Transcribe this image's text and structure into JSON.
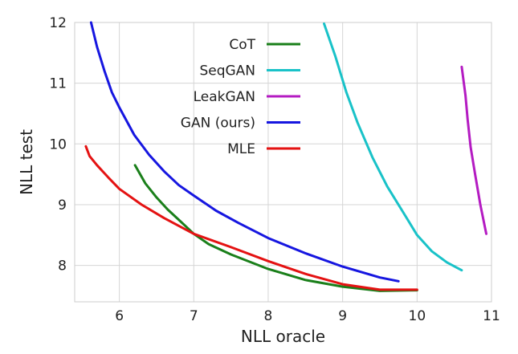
{
  "chart_data": {
    "type": "line",
    "title": "",
    "xlabel": "NLL oracle",
    "ylabel": "NLL test",
    "xlim": [
      5.4,
      11.0
    ],
    "ylim": [
      7.4,
      12.0
    ],
    "xticks": [
      6,
      7,
      8,
      9,
      10,
      11
    ],
    "yticks": [
      8,
      9,
      10,
      11,
      12
    ],
    "grid": true,
    "legend_position": "top-right",
    "series": [
      {
        "name": "CoT",
        "color": "#1a7f1a",
        "x": [
          6.21,
          6.35,
          6.5,
          6.65,
          6.8,
          7.0,
          7.2,
          7.5,
          8.0,
          8.5,
          9.0,
          9.5,
          10.0
        ],
        "y": [
          9.65,
          9.35,
          9.12,
          8.92,
          8.75,
          8.52,
          8.35,
          8.18,
          7.94,
          7.76,
          7.65,
          7.58,
          7.59
        ]
      },
      {
        "name": "SeqGAN",
        "color": "#19c2c8",
        "x": [
          8.75,
          8.9,
          9.05,
          9.2,
          9.4,
          9.6,
          9.8,
          10.0,
          10.2,
          10.4,
          10.6
        ],
        "y": [
          11.98,
          11.45,
          10.85,
          10.35,
          9.78,
          9.3,
          8.9,
          8.5,
          8.23,
          8.05,
          7.92
        ]
      },
      {
        "name": "LeakGAN",
        "color": "#b41bc2",
        "x": [
          10.6,
          10.65,
          10.68,
          10.72,
          10.78,
          10.85,
          10.93
        ],
        "y": [
          11.27,
          10.8,
          10.4,
          9.95,
          9.5,
          9.0,
          8.52
        ]
      },
      {
        "name": "GAN (ours)",
        "color": "#1616e0",
        "x": [
          5.62,
          5.7,
          5.8,
          5.9,
          6.0,
          6.2,
          6.4,
          6.6,
          6.8,
          7.0,
          7.3,
          7.6,
          8.0,
          8.5,
          9.0,
          9.5,
          9.75
        ],
        "y": [
          12.0,
          11.6,
          11.2,
          10.85,
          10.6,
          10.15,
          9.82,
          9.55,
          9.32,
          9.15,
          8.9,
          8.7,
          8.45,
          8.2,
          7.98,
          7.8,
          7.74
        ]
      },
      {
        "name": "MLE",
        "color": "#e41212",
        "x": [
          5.55,
          5.6,
          5.7,
          5.85,
          6.0,
          6.3,
          6.6,
          7.0,
          7.5,
          8.0,
          8.5,
          9.0,
          9.5,
          10.0
        ],
        "y": [
          9.96,
          9.8,
          9.65,
          9.45,
          9.26,
          9.0,
          8.78,
          8.52,
          8.3,
          8.07,
          7.86,
          7.69,
          7.6,
          7.6
        ]
      }
    ]
  }
}
